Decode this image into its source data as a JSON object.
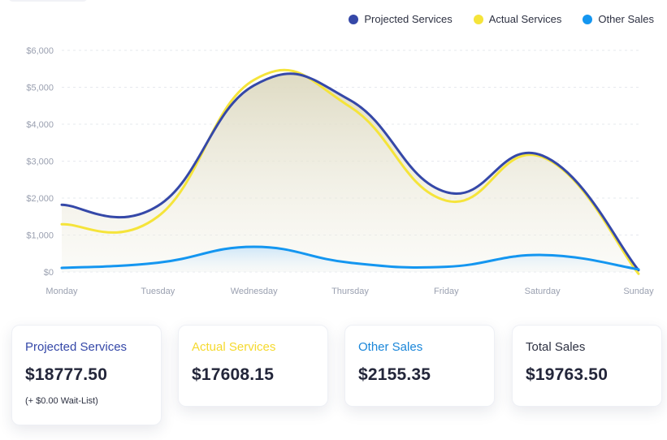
{
  "colors": {
    "projected": "#3548a8",
    "actual": "#f5e43a",
    "other": "#1496f0",
    "grid": "#e6e8ee",
    "tick_text": "#9aa0b0"
  },
  "legend": [
    {
      "label": "Projected Services",
      "color": "#3548a8"
    },
    {
      "label": "Actual Services",
      "color": "#f5e43a"
    },
    {
      "label": "Other Sales",
      "color": "#1496f0"
    }
  ],
  "chart_data": {
    "type": "line",
    "categories": [
      "Monday",
      "Tuesday",
      "Wednesday",
      "Thursday",
      "Friday",
      "Saturday",
      "Sunday"
    ],
    "y_tick_labels": [
      "$0",
      "$1,000",
      "$2,000",
      "$3,000",
      "$4,000",
      "$5,000",
      "$6,000"
    ],
    "ylim": [
      0,
      6000
    ],
    "grid": true,
    "legend_position": "top-right",
    "series": [
      {
        "name": "Projected Services",
        "color": "#3548a8",
        "values": [
          1820,
          1790,
          5050,
          4650,
          2160,
          3150,
          50
        ]
      },
      {
        "name": "Actual Services",
        "color": "#f5e43a",
        "values": [
          1290,
          1500,
          5200,
          4470,
          1930,
          3110,
          -50
        ]
      },
      {
        "name": "Other Sales",
        "color": "#1496f0",
        "values": [
          110,
          250,
          680,
          250,
          140,
          460,
          70
        ]
      }
    ]
  },
  "cards": [
    {
      "label": "Projected Services",
      "value": "$18777.50",
      "note": "(+ $0.00 Wait-List)",
      "color": "#3548a8"
    },
    {
      "label": "Actual Services",
      "value": "$17608.15",
      "color": "#f5d92e"
    },
    {
      "label": "Other Sales",
      "value": "$2155.35",
      "color": "#1a86d9"
    },
    {
      "label": "Total Sales",
      "value": "$19763.50",
      "color": "#2d3142"
    }
  ]
}
